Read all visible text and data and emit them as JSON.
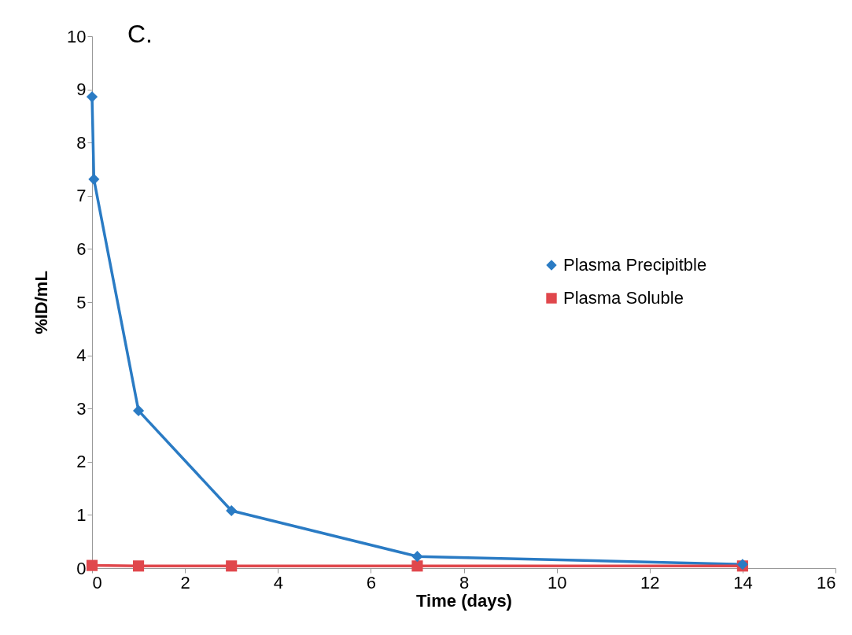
{
  "chart_data": {
    "type": "line",
    "title": "C.",
    "xlabel": "Time (days)",
    "ylabel": "%ID/mL",
    "xlim": [
      0,
      16
    ],
    "xticks": [
      0,
      2,
      4,
      6,
      8,
      10,
      12,
      14,
      16
    ],
    "ylim": [
      0,
      10
    ],
    "yticks": [
      0,
      1,
      2,
      3,
      4,
      5,
      6,
      7,
      8,
      9,
      10
    ],
    "grid": false,
    "legend": "right",
    "series": [
      {
        "name": "Plasma Precipitble",
        "color": "#2a7bc4",
        "marker": "diamond",
        "x": [
          0,
          0.04,
          1,
          3,
          7,
          14
        ],
        "values": [
          8.86,
          7.31,
          2.96,
          1.08,
          0.22,
          0.07
        ]
      },
      {
        "name": "Plasma Soluble",
        "color": "#e0474c",
        "marker": "square",
        "x": [
          0,
          1,
          3,
          7,
          14
        ],
        "values": [
          0.05,
          0.04,
          0.04,
          0.04,
          0.04
        ]
      }
    ]
  }
}
